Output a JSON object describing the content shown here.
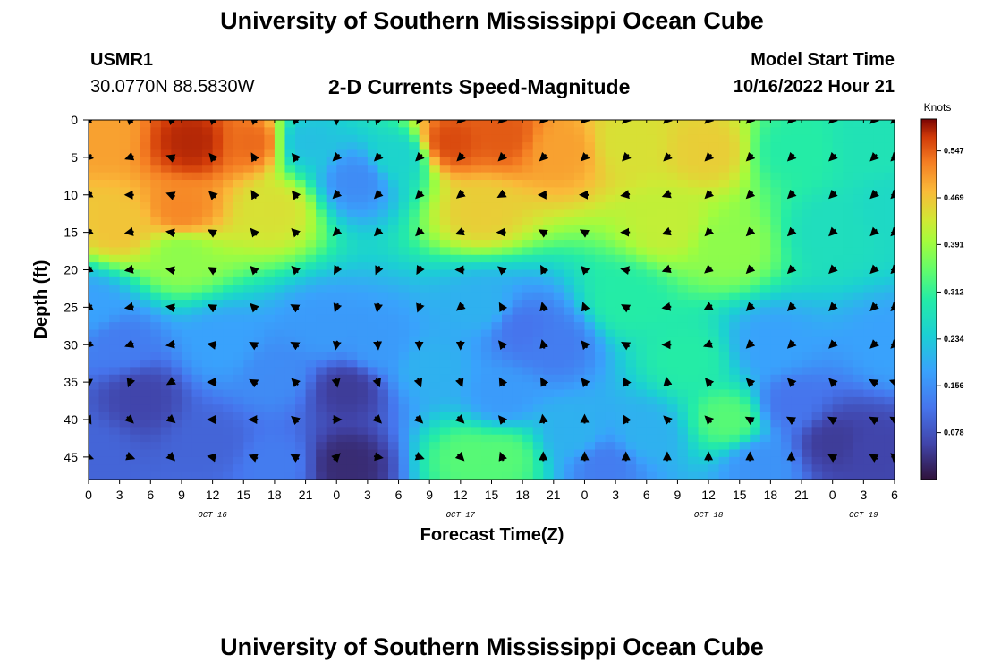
{
  "header": {
    "title": "University of Southern Mississippi Ocean Cube",
    "station": "USMR1",
    "coords": "30.0770N  88.5830W",
    "subtitle": "2-D Currents Speed-Magnitude",
    "model_start_label": "Model Start Time",
    "model_start_value": "10/16/2022 Hour 21"
  },
  "footer": {
    "title": "University of Southern Mississippi Ocean Cube"
  },
  "chart_data": {
    "type": "heatmap",
    "title": "2-D Currents Speed-Magnitude",
    "xlabel": "Forecast Time(Z)",
    "ylabel": "Depth (ft)",
    "x_tick_labels": [
      "0",
      "3",
      "6",
      "9",
      "12",
      "15",
      "18",
      "21",
      "0",
      "3",
      "6",
      "9",
      "12",
      "15",
      "18",
      "21",
      "0",
      "3",
      "6",
      "9",
      "12",
      "15",
      "18",
      "21",
      "0",
      "3",
      "6"
    ],
    "x_range_hours": [
      0,
      78
    ],
    "date_labels": [
      {
        "text": "OCT 16",
        "hour": 12
      },
      {
        "text": "OCT 17",
        "hour": 36
      },
      {
        "text": "OCT 18",
        "hour": 60
      },
      {
        "text": "OCT 19",
        "hour": 75
      }
    ],
    "y_ticks": [
      0,
      5,
      10,
      15,
      20,
      25,
      30,
      35,
      40,
      45
    ],
    "y_range_ft": [
      0,
      48
    ],
    "colorbar": {
      "label": "Knots",
      "min": 0.0,
      "max": 0.6,
      "ticks": [
        0.078,
        0.156,
        0.234,
        0.312,
        0.391,
        0.469,
        0.547
      ],
      "tick_labels": [
        "0.078",
        "0.156",
        "0.234",
        "0.312",
        "0.391",
        "0.469",
        "0.547"
      ]
    },
    "grid": false,
    "speed_field_description": "Approximate speed (knots) at control points; field is smoothly interpolated",
    "speed_control_points": [
      {
        "hour": 1,
        "depth": 2,
        "speed": 0.5
      },
      {
        "hour": 10,
        "depth": 3,
        "speed": 0.58
      },
      {
        "hour": 16,
        "depth": 3,
        "speed": 0.54
      },
      {
        "hour": 9,
        "depth": 12,
        "speed": 0.52
      },
      {
        "hour": 3,
        "depth": 14,
        "speed": 0.47
      },
      {
        "hour": 18,
        "depth": 12,
        "speed": 0.44
      },
      {
        "hour": 9,
        "depth": 18,
        "speed": 0.38
      },
      {
        "hour": 21,
        "depth": 3,
        "speed": 0.22
      },
      {
        "hour": 26,
        "depth": 8,
        "speed": 0.15
      },
      {
        "hour": 30,
        "depth": 5,
        "speed": 0.25
      },
      {
        "hour": 35,
        "depth": 3,
        "speed": 0.56
      },
      {
        "hour": 40,
        "depth": 2,
        "speed": 0.55
      },
      {
        "hour": 46,
        "depth": 4,
        "speed": 0.5
      },
      {
        "hour": 38,
        "depth": 12,
        "speed": 0.46
      },
      {
        "hour": 52,
        "depth": 3,
        "speed": 0.44
      },
      {
        "hour": 60,
        "depth": 4,
        "speed": 0.46
      },
      {
        "hour": 56,
        "depth": 14,
        "speed": 0.42
      },
      {
        "hour": 62,
        "depth": 17,
        "speed": 0.38
      },
      {
        "hour": 52,
        "depth": 24,
        "speed": 0.3
      },
      {
        "hour": 58,
        "depth": 32,
        "speed": 0.3
      },
      {
        "hour": 62,
        "depth": 40,
        "speed": 0.34
      },
      {
        "hour": 68,
        "depth": 4,
        "speed": 0.3
      },
      {
        "hour": 76,
        "depth": 3,
        "speed": 0.28
      },
      {
        "hour": 72,
        "depth": 15,
        "speed": 0.27
      },
      {
        "hour": 78,
        "depth": 12,
        "speed": 0.26
      },
      {
        "hour": 0,
        "depth": 25,
        "speed": 0.18
      },
      {
        "hour": 5,
        "depth": 37,
        "speed": 0.06
      },
      {
        "hour": 12,
        "depth": 43,
        "speed": 0.1
      },
      {
        "hour": 0,
        "depth": 44,
        "speed": 0.1
      },
      {
        "hour": 18,
        "depth": 34,
        "speed": 0.15
      },
      {
        "hour": 18,
        "depth": 46,
        "speed": 0.13
      },
      {
        "hour": 23,
        "depth": 28,
        "speed": 0.17
      },
      {
        "hour": 25,
        "depth": 36,
        "speed": 0.05
      },
      {
        "hour": 25,
        "depth": 46,
        "speed": 0.03
      },
      {
        "hour": 28,
        "depth": 30,
        "speed": 0.17
      },
      {
        "hour": 33,
        "depth": 33,
        "speed": 0.2
      },
      {
        "hour": 38,
        "depth": 25,
        "speed": 0.2
      },
      {
        "hour": 42,
        "depth": 28,
        "speed": 0.12
      },
      {
        "hour": 45,
        "depth": 30,
        "speed": 0.13
      },
      {
        "hour": 40,
        "depth": 37,
        "speed": 0.17
      },
      {
        "hour": 37,
        "depth": 45,
        "speed": 0.34
      },
      {
        "hour": 40,
        "depth": 45,
        "speed": 0.34
      },
      {
        "hour": 47,
        "depth": 42,
        "speed": 0.2
      },
      {
        "hour": 50,
        "depth": 46,
        "speed": 0.13
      },
      {
        "hour": 54,
        "depth": 42,
        "speed": 0.2
      },
      {
        "hour": 66,
        "depth": 30,
        "speed": 0.18
      },
      {
        "hour": 68,
        "depth": 38,
        "speed": 0.12
      },
      {
        "hour": 72,
        "depth": 43,
        "speed": 0.05
      },
      {
        "hour": 76,
        "depth": 44,
        "speed": 0.06
      },
      {
        "hour": 78,
        "depth": 30,
        "speed": 0.18
      },
      {
        "hour": 65,
        "depth": 46,
        "speed": 0.16
      },
      {
        "hour": 13,
        "depth": 30,
        "speed": 0.18
      },
      {
        "hour": 3,
        "depth": 30,
        "speed": 0.13
      }
    ],
    "vectors": {
      "description": "Current direction arrows (direction in compass degrees, toward which current flows)",
      "depths": [
        0,
        5,
        10,
        15,
        20,
        25,
        30,
        35,
        40,
        45
      ],
      "hours": [
        0,
        4,
        8,
        12,
        16,
        20,
        24,
        28,
        32,
        36,
        40,
        44,
        48,
        52,
        56,
        60,
        64,
        68,
        72,
        76,
        78
      ],
      "row_directions": [
        [
          315,
          315,
          315,
          315,
          315,
          315,
          180,
          200,
          210,
          225,
          225,
          225,
          225,
          225,
          225,
          225,
          225,
          225,
          225,
          225,
          225
        ],
        [
          225,
          250,
          290,
          320,
          330,
          320,
          225,
          225,
          225,
          225,
          225,
          225,
          225,
          225,
          225,
          225,
          225,
          225,
          225,
          225,
          225
        ],
        [
          240,
          270,
          290,
          315,
          330,
          320,
          225,
          225,
          225,
          230,
          240,
          270,
          270,
          260,
          250,
          225,
          225,
          225,
          225,
          225,
          225
        ],
        [
          230,
          260,
          280,
          300,
          320,
          315,
          225,
          225,
          225,
          250,
          270,
          300,
          300,
          270,
          250,
          225,
          225,
          225,
          225,
          225,
          225
        ],
        [
          235,
          260,
          280,
          300,
          315,
          315,
          210,
          205,
          210,
          270,
          310,
          330,
          315,
          280,
          250,
          230,
          225,
          225,
          225,
          225,
          225
        ],
        [
          240,
          260,
          280,
          300,
          315,
          300,
          200,
          190,
          200,
          230,
          330,
          345,
          340,
          300,
          260,
          240,
          225,
          225,
          225,
          225,
          225
        ],
        [
          225,
          250,
          260,
          280,
          300,
          300,
          190,
          175,
          180,
          180,
          320,
          345,
          320,
          300,
          270,
          250,
          225,
          225,
          225,
          225,
          225
        ],
        [
          180,
          200,
          240,
          270,
          300,
          315,
          170,
          160,
          160,
          160,
          330,
          330,
          320,
          330,
          350,
          320,
          315,
          315,
          315,
          300,
          290
        ],
        [
          150,
          135,
          130,
          270,
          270,
          310,
          90,
          135,
          135,
          135,
          320,
          350,
          0,
          330,
          315,
          315,
          300,
          300,
          300,
          300,
          300
        ],
        [
          110,
          110,
          135,
          280,
          290,
          300,
          45,
          100,
          110,
          135,
          340,
          0,
          0,
          0,
          0,
          0,
          0,
          0,
          300,
          300,
          315
        ]
      ]
    }
  }
}
